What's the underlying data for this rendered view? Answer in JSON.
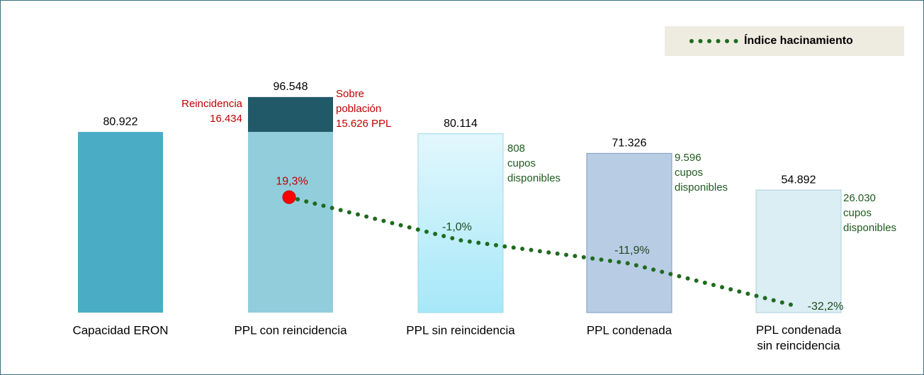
{
  "chart_data": {
    "type": "bar",
    "categories": [
      "Capacidad ERON",
      "PPL con reincidencia",
      "PPL sin reincidencia",
      "PPL condenada",
      "PPL condenada sin reincidencia"
    ],
    "ylim": [
      0,
      100000
    ],
    "y2lim": [
      -40,
      40
    ],
    "legend": "top-right",
    "series": [
      {
        "values": [
          80922,
          80922,
          80114,
          71326,
          54892
        ],
        "colors": [
          "#4bacc6",
          "#92cddc",
          "#bdeefa",
          "#b8cce4",
          "#daeef3"
        ]
      },
      {
        "values": [
          null,
          15626,
          null,
          null,
          null
        ],
        "color": "#215968"
      },
      {
        "name": "Índice hacinamiento",
        "type": "line",
        "axis": "y2",
        "color": "#1e6b1e",
        "highlight_color": "#ff0000",
        "values": [
          null,
          19.3,
          -1.0,
          -11.9,
          -32.2
        ],
        "value_labels": [
          null,
          "19,3%",
          "-1,0%",
          "-11,9%",
          "-32,2%"
        ]
      }
    ],
    "total_labels": [
      "80.922",
      "96.548",
      "80.114",
      "71.326",
      "54.892"
    ],
    "annotations": [
      {
        "lines": [
          "Reincidencia",
          "16.434"
        ],
        "color": "#c00000"
      },
      {
        "lines": [
          "Sobre",
          "población",
          "15.626 PPL"
        ],
        "color": "#c00000"
      },
      {
        "lines": [
          "808",
          "cupos",
          "disponibles"
        ],
        "color": "#1e5a1e"
      },
      {
        "lines": [
          "9.596",
          "cupos",
          "disponibles"
        ],
        "color": "#1e5a1e"
      },
      {
        "lines": [
          "26.030",
          "cupos",
          "disponibles"
        ],
        "color": "#1e5a1e"
      }
    ]
  }
}
